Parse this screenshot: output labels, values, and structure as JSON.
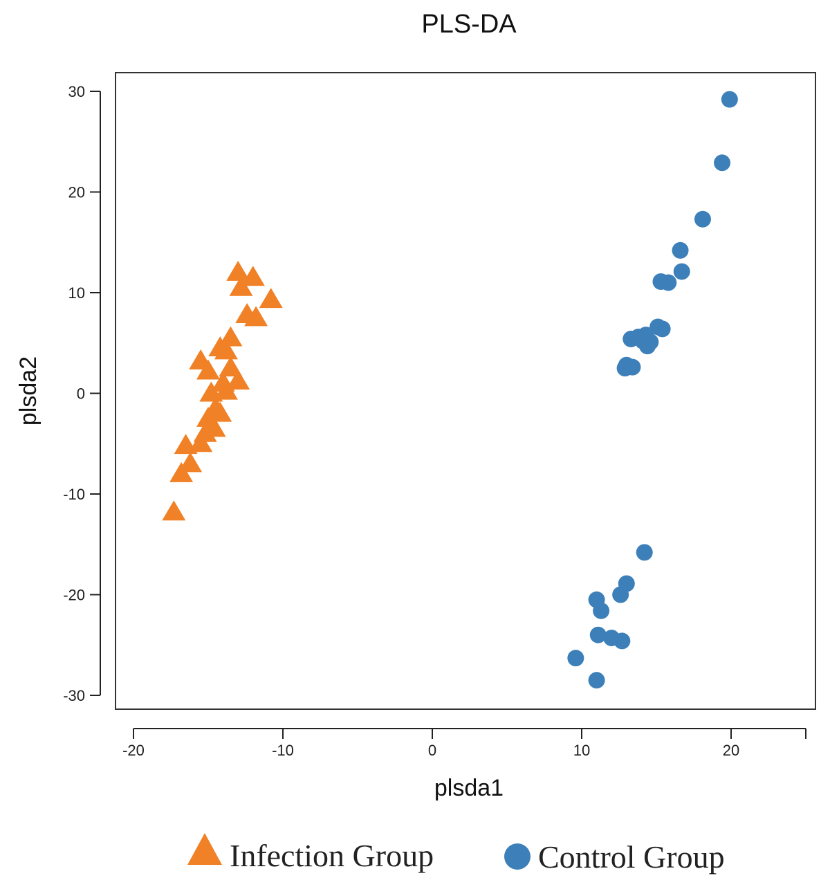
{
  "chart_data": {
    "type": "scatter",
    "title": "PLS-DA",
    "xlabel": "plsda1",
    "ylabel": "plsda2",
    "xlim": [
      -20,
      25
    ],
    "ylim": [
      -30,
      30
    ],
    "x_ticks": [
      -20,
      -10,
      0,
      10,
      20
    ],
    "x_tick_labels": [
      "-20",
      "-10",
      "0",
      "10",
      "20"
    ],
    "y_ticks": [
      -30,
      -20,
      -10,
      0,
      10,
      20,
      30
    ],
    "y_tick_labels": [
      "-30",
      "-20",
      "-10",
      "0",
      "10",
      "20",
      "30"
    ],
    "grid": false,
    "legend_position": "bottom",
    "series": [
      {
        "name": "Infection Group",
        "marker": "triangle",
        "color": "#F08126",
        "points": [
          [
            -13.0,
            12.0
          ],
          [
            -12.0,
            11.5
          ],
          [
            -12.8,
            10.5
          ],
          [
            -12.4,
            7.8
          ],
          [
            -11.8,
            7.5
          ],
          [
            -10.8,
            9.3
          ],
          [
            -13.5,
            5.5
          ],
          [
            -14.2,
            4.5
          ],
          [
            -13.8,
            4.2
          ],
          [
            -15.5,
            3.2
          ],
          [
            -15.0,
            2.2
          ],
          [
            -13.5,
            2.5
          ],
          [
            -13.0,
            1.2
          ],
          [
            -14.0,
            1.0
          ],
          [
            -14.8,
            0.0
          ],
          [
            -13.8,
            0.2
          ],
          [
            -14.5,
            -1.5
          ],
          [
            -15.0,
            -2.5
          ],
          [
            -14.2,
            -2.0
          ],
          [
            -14.6,
            -3.5
          ],
          [
            -15.2,
            -4.0
          ],
          [
            -15.5,
            -5.0
          ],
          [
            -16.5,
            -5.2
          ],
          [
            -16.2,
            -7.0
          ],
          [
            -16.8,
            -8.0
          ],
          [
            -17.3,
            -11.8
          ]
        ]
      },
      {
        "name": "Control Group",
        "marker": "circle",
        "color": "#3C7FB9",
        "points": [
          [
            19.9,
            29.2
          ],
          [
            19.4,
            22.9
          ],
          [
            18.1,
            17.3
          ],
          [
            16.6,
            14.2
          ],
          [
            16.7,
            12.1
          ],
          [
            15.3,
            11.1
          ],
          [
            15.8,
            11.0
          ],
          [
            15.1,
            6.6
          ],
          [
            15.4,
            6.4
          ],
          [
            13.3,
            5.4
          ],
          [
            13.8,
            5.6
          ],
          [
            14.3,
            5.8
          ],
          [
            14.1,
            5.2
          ],
          [
            14.6,
            5.1
          ],
          [
            14.4,
            4.7
          ],
          [
            12.9,
            2.5
          ],
          [
            13.0,
            2.8
          ],
          [
            13.4,
            2.6
          ],
          [
            14.2,
            -15.8
          ],
          [
            13.0,
            -18.9
          ],
          [
            12.6,
            -20.0
          ],
          [
            11.0,
            -20.5
          ],
          [
            11.3,
            -21.6
          ],
          [
            11.1,
            -24.0
          ],
          [
            12.0,
            -24.3
          ],
          [
            12.7,
            -24.6
          ],
          [
            9.6,
            -26.3
          ],
          [
            11.0,
            -28.5
          ]
        ]
      }
    ]
  }
}
